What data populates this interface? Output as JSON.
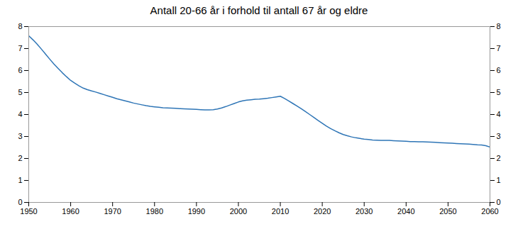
{
  "chart_data": {
    "type": "line",
    "title": "Antall 20-66 år i forhold til antall 67 år og eldre",
    "x": [
      1950,
      1951,
      1952,
      1953,
      1954,
      1955,
      1956,
      1957,
      1958,
      1959,
      1960,
      1961,
      1962,
      1963,
      1964,
      1965,
      1966,
      1967,
      1968,
      1969,
      1970,
      1971,
      1972,
      1973,
      1974,
      1975,
      1976,
      1977,
      1978,
      1979,
      1980,
      1981,
      1982,
      1983,
      1984,
      1985,
      1986,
      1987,
      1988,
      1989,
      1990,
      1991,
      1992,
      1993,
      1994,
      1995,
      1996,
      1997,
      1998,
      1999,
      2000,
      2001,
      2002,
      2003,
      2004,
      2005,
      2006,
      2007,
      2008,
      2009,
      2010,
      2011,
      2012,
      2013,
      2014,
      2015,
      2016,
      2017,
      2018,
      2019,
      2020,
      2021,
      2022,
      2023,
      2024,
      2025,
      2026,
      2027,
      2028,
      2029,
      2030,
      2031,
      2032,
      2033,
      2034,
      2035,
      2036,
      2037,
      2038,
      2039,
      2040,
      2041,
      2042,
      2043,
      2044,
      2045,
      2046,
      2047,
      2048,
      2049,
      2050,
      2051,
      2052,
      2053,
      2054,
      2055,
      2056,
      2057,
      2058,
      2059,
      2060
    ],
    "values": [
      7.58,
      7.4,
      7.2,
      6.98,
      6.75,
      6.52,
      6.3,
      6.1,
      5.9,
      5.72,
      5.55,
      5.42,
      5.3,
      5.2,
      5.13,
      5.07,
      5.02,
      4.96,
      4.9,
      4.84,
      4.78,
      4.72,
      4.67,
      4.62,
      4.57,
      4.52,
      4.48,
      4.44,
      4.4,
      4.37,
      4.35,
      4.33,
      4.31,
      4.3,
      4.29,
      4.28,
      4.27,
      4.26,
      4.25,
      4.24,
      4.23,
      4.22,
      4.21,
      4.21,
      4.22,
      4.25,
      4.3,
      4.36,
      4.43,
      4.5,
      4.57,
      4.62,
      4.65,
      4.67,
      4.69,
      4.7,
      4.72,
      4.74,
      4.77,
      4.8,
      4.83,
      4.73,
      4.62,
      4.5,
      4.38,
      4.26,
      4.13,
      4.0,
      3.87,
      3.73,
      3.6,
      3.47,
      3.36,
      3.26,
      3.17,
      3.09,
      3.03,
      2.98,
      2.94,
      2.91,
      2.88,
      2.86,
      2.84,
      2.83,
      2.82,
      2.82,
      2.82,
      2.81,
      2.8,
      2.79,
      2.78,
      2.77,
      2.77,
      2.76,
      2.76,
      2.75,
      2.74,
      2.73,
      2.72,
      2.71,
      2.7,
      2.69,
      2.68,
      2.67,
      2.66,
      2.65,
      2.64,
      2.62,
      2.61,
      2.58,
      2.52
    ],
    "color": "#2E75B6",
    "xlim": [
      1950,
      2060
    ],
    "xticks": [
      1950,
      1960,
      1970,
      1980,
      1990,
      2000,
      2010,
      2020,
      2030,
      2040,
      2050,
      2060
    ],
    "ylim": [
      0,
      8
    ],
    "yticks": [
      0,
      1,
      2,
      3,
      4,
      5,
      6,
      7,
      8
    ],
    "grid": false
  }
}
